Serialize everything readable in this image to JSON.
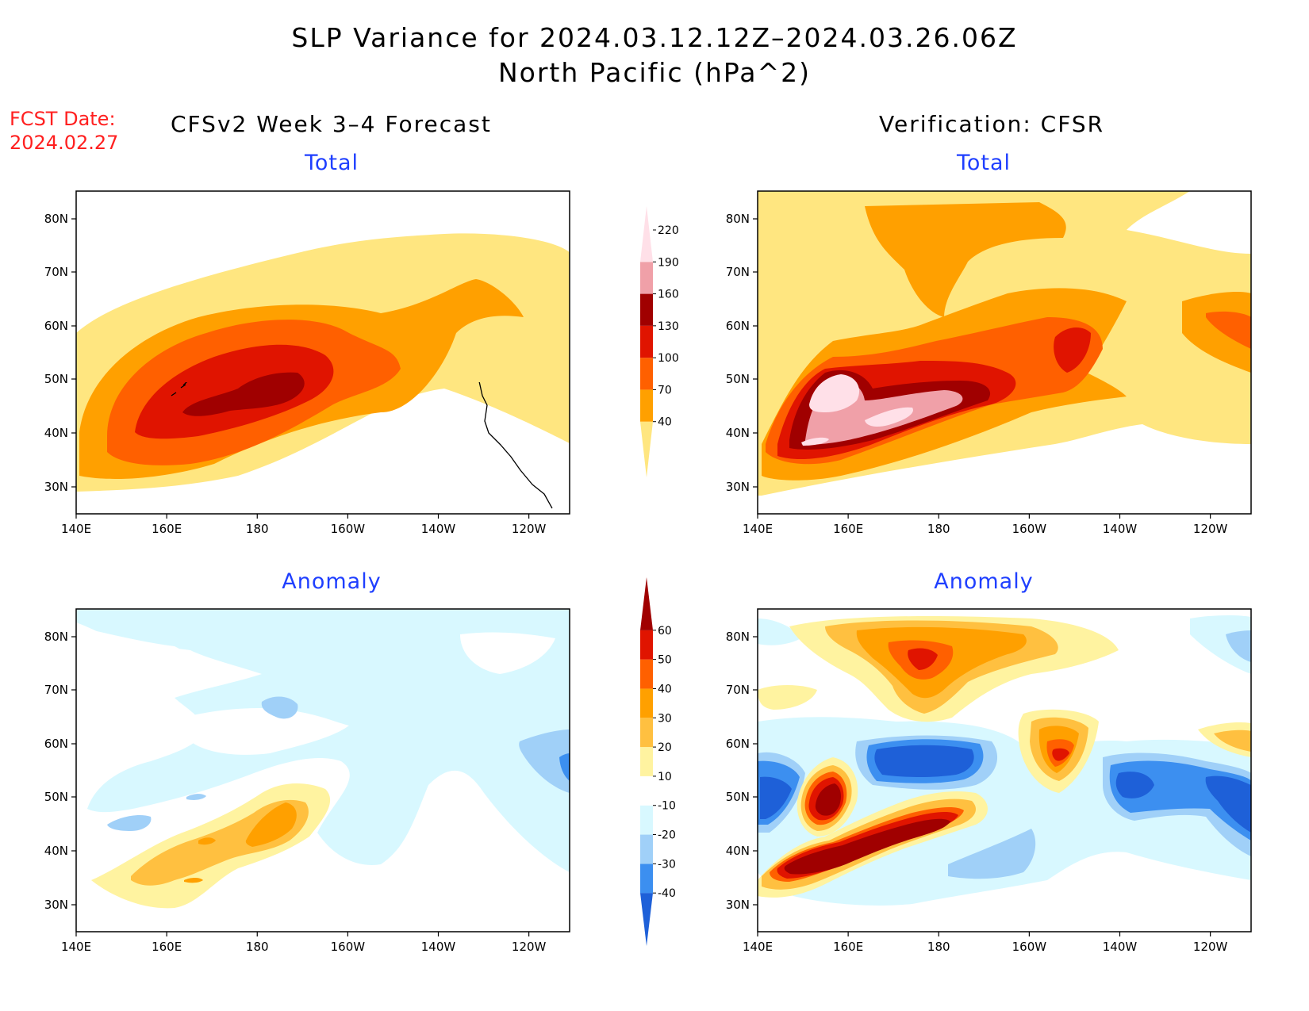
{
  "title": {
    "line1": "SLP Variance for 2024.03.12.12Z–2024.03.26.06Z",
    "line2": "North Pacific (hPa^2)"
  },
  "fcst_date": {
    "label": "FCST Date:",
    "value": "2024.02.27"
  },
  "columns": {
    "left": "CFSv2 Week 3–4 Forecast",
    "right": "Verification: CFSR"
  },
  "panels": {
    "top_left": "Total",
    "top_right": "Total",
    "bottom_left": "Anomaly",
    "bottom_right": "Anomaly"
  },
  "chart_data": {
    "type": "heatmap",
    "lat_ticks": [
      "30N",
      "40N",
      "50N",
      "60N",
      "70N",
      "80N"
    ],
    "lon_ticks": [
      "140E",
      "160E",
      "180",
      "160W",
      "140W",
      "120W"
    ],
    "total_colorbar": {
      "levels": [
        "40",
        "70",
        "100",
        "130",
        "160",
        "190",
        "220"
      ],
      "colors": [
        "#ffe680",
        "#ffa000",
        "#ff6000",
        "#e01400",
        "#a00000",
        "#f0a0a8",
        "#ffe0e8"
      ]
    },
    "anomaly_colorbar": {
      "levels": [
        "-40",
        "-30",
        "-20",
        "-10",
        "10",
        "20",
        "30",
        "40",
        "50",
        "60"
      ],
      "colors": [
        "#1e60d8",
        "#3c8ff0",
        "#a0d0f8",
        "#d8f8ff",
        "#ffffff",
        "#fff3a0",
        "#ffc040",
        "#ffa000",
        "#ff6000",
        "#e01400",
        "#a00000"
      ]
    }
  }
}
